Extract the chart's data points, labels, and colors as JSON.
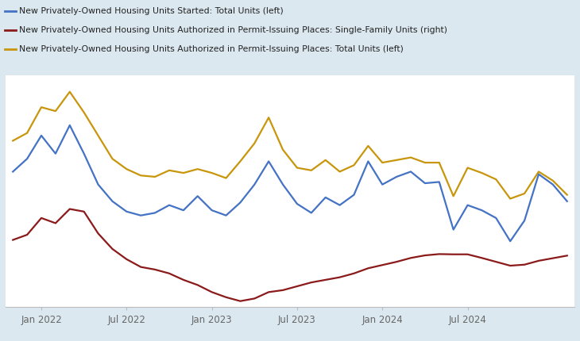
{
  "legend_labels": [
    "New Privately-Owned Housing Units Started: Total Units (left)",
    "New Privately-Owned Housing Units Authorized in Permit-Issuing Places: Single-Family Units (right)",
    "New Privately-Owned Housing Units Authorized in Permit-Issuing Places: Total Units (left)"
  ],
  "legend_colors": [
    "#4472c4",
    "#8b1a1a",
    "#c8960c"
  ],
  "bg_color": "#dce8f0",
  "bg_plot": "#ffffff",
  "line_colors": [
    "#4472c4",
    "#8b1a1a",
    "#c8960c"
  ],
  "grid_color": "#d0d8e0",
  "tick_label_color": "#666666",
  "tick_labels": [
    "Jan 2022",
    "Jul 2022",
    "Jan 2023",
    "Jul 2023",
    "Jan 2024",
    "Jul 2024"
  ],
  "blue_y": [
    1400,
    1500,
    1680,
    1540,
    1760,
    1540,
    1300,
    1170,
    1090,
    1060,
    1080,
    1140,
    1100,
    1210,
    1100,
    1060,
    1160,
    1300,
    1480,
    1300,
    1150,
    1080,
    1200,
    1140,
    1220,
    1480,
    1300,
    1360,
    1400,
    1310,
    1320,
    950,
    1140,
    1100,
    1040,
    860,
    1020,
    1380,
    1300,
    1170
  ],
  "red_y": [
    870,
    910,
    1040,
    1000,
    1110,
    1090,
    920,
    800,
    720,
    660,
    640,
    610,
    560,
    520,
    465,
    425,
    395,
    415,
    465,
    480,
    510,
    540,
    560,
    580,
    610,
    650,
    675,
    700,
    730,
    750,
    760,
    758,
    758,
    730,
    700,
    670,
    678,
    708,
    728,
    748
  ],
  "gold_y": [
    1640,
    1700,
    1900,
    1870,
    2020,
    1860,
    1680,
    1500,
    1420,
    1370,
    1360,
    1410,
    1390,
    1420,
    1390,
    1350,
    1480,
    1620,
    1820,
    1570,
    1430,
    1410,
    1490,
    1400,
    1450,
    1600,
    1470,
    1490,
    1510,
    1470,
    1470,
    1210,
    1430,
    1390,
    1340,
    1190,
    1230,
    1400,
    1330,
    1220
  ],
  "ylim": [
    350,
    2150
  ],
  "n_points": 40,
  "tick_positions": [
    2,
    8,
    14,
    20,
    26,
    32
  ]
}
